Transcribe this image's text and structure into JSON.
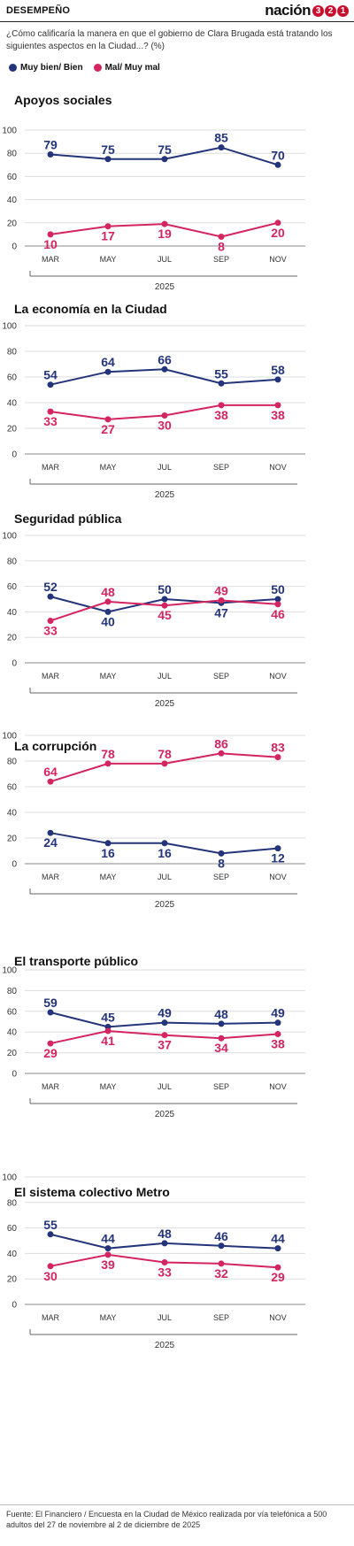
{
  "header": {
    "section": "DESEMPEÑO",
    "brand_word": "nación",
    "brand_digits": [
      "3",
      "2",
      "1"
    ]
  },
  "question": "¿Cómo calificaría la manera en que el gobierno de Clara Brugada está tratando los siguientes aspectos en la Ciudad...? (%)",
  "legend": [
    {
      "label": "Muy bien/ Bien",
      "color": "#24347a"
    },
    {
      "label": "Mal/ Muy mal",
      "color": "#d3255f"
    }
  ],
  "source": "Fuente: El Financiero / Encuesta en la Ciudad de México realizada por vía telefónica a 500 adultos del 27 de noviembre al 2 de diciembre de 2025",
  "chart_data": [
    {
      "type": "line",
      "title": "Apoyos sociales",
      "categories": [
        "MAR",
        "MAY",
        "JUL",
        "SEP",
        "NOV"
      ],
      "year_label": "2025",
      "ylim": [
        0,
        100
      ],
      "yticks": [
        0,
        20,
        40,
        60,
        80,
        100
      ],
      "grid": true,
      "series": [
        {
          "name": "Muy bien/ Bien",
          "color": "#24347a",
          "values": [
            79,
            75,
            75,
            85,
            70
          ]
        },
        {
          "name": "Mal/ Muy mal",
          "color": "#d3255f",
          "values": [
            10,
            17,
            19,
            8,
            20
          ]
        }
      ]
    },
    {
      "type": "line",
      "title": "La economía en la Ciudad",
      "categories": [
        "MAR",
        "MAY",
        "JUL",
        "SEP",
        "NOV"
      ],
      "year_label": "2025",
      "ylim": [
        0,
        100
      ],
      "yticks": [
        0,
        20,
        40,
        60,
        80,
        100
      ],
      "grid": true,
      "series": [
        {
          "name": "Muy bien/ Bien",
          "color": "#24347a",
          "values": [
            54,
            64,
            66,
            55,
            58
          ]
        },
        {
          "name": "Mal/ Muy mal",
          "color": "#d3255f",
          "values": [
            33,
            27,
            30,
            38,
            38
          ]
        }
      ]
    },
    {
      "type": "line",
      "title": "Seguridad pública",
      "categories": [
        "MAR",
        "MAY",
        "JUL",
        "SEP",
        "NOV"
      ],
      "year_label": "2025",
      "ylim": [
        0,
        100
      ],
      "yticks": [
        0,
        20,
        40,
        60,
        80,
        100
      ],
      "grid": true,
      "series": [
        {
          "name": "Muy bien/ Bien",
          "color": "#24347a",
          "values": [
            52,
            40,
            50,
            47,
            50
          ]
        },
        {
          "name": "Mal/ Muy mal",
          "color": "#d3255f",
          "values": [
            33,
            48,
            45,
            49,
            46
          ]
        }
      ]
    },
    {
      "type": "line",
      "title": "La corrupción",
      "categories": [
        "MAR",
        "MAY",
        "JUL",
        "SEP",
        "NOV"
      ],
      "year_label": "2025",
      "ylim": [
        0,
        100
      ],
      "yticks": [
        0,
        20,
        40,
        60,
        80,
        100
      ],
      "grid": true,
      "series": [
        {
          "name": "Muy bien/ Bien",
          "color": "#24347a",
          "values": [
            24,
            16,
            16,
            8,
            12
          ]
        },
        {
          "name": "Mal/ Muy mal",
          "color": "#d3255f",
          "values": [
            64,
            78,
            78,
            86,
            83
          ]
        }
      ]
    },
    {
      "type": "line",
      "title": "El transporte público",
      "categories": [
        "MAR",
        "MAY",
        "JUL",
        "SEP",
        "NOV"
      ],
      "year_label": "2025",
      "ylim": [
        0,
        100
      ],
      "yticks": [
        0,
        20,
        40,
        60,
        80,
        100
      ],
      "grid": true,
      "series": [
        {
          "name": "Muy bien/ Bien",
          "color": "#24347a",
          "values": [
            59,
            45,
            49,
            48,
            49
          ]
        },
        {
          "name": "Mal/ Muy mal",
          "color": "#d3255f",
          "values": [
            29,
            41,
            37,
            34,
            38
          ]
        }
      ]
    },
    {
      "type": "line",
      "title": "El sistema colectivo Metro",
      "categories": [
        "MAR",
        "MAY",
        "JUL",
        "SEP",
        "NOV"
      ],
      "year_label": "2025",
      "ylim": [
        0,
        100
      ],
      "yticks": [
        0,
        20,
        40,
        60,
        80,
        100
      ],
      "grid": true,
      "series": [
        {
          "name": "Muy bien/ Bien",
          "color": "#24347a",
          "values": [
            55,
            44,
            48,
            46,
            44
          ]
        },
        {
          "name": "Mal/ Muy mal",
          "color": "#d3255f",
          "values": [
            30,
            39,
            33,
            32,
            29
          ]
        }
      ]
    }
  ]
}
